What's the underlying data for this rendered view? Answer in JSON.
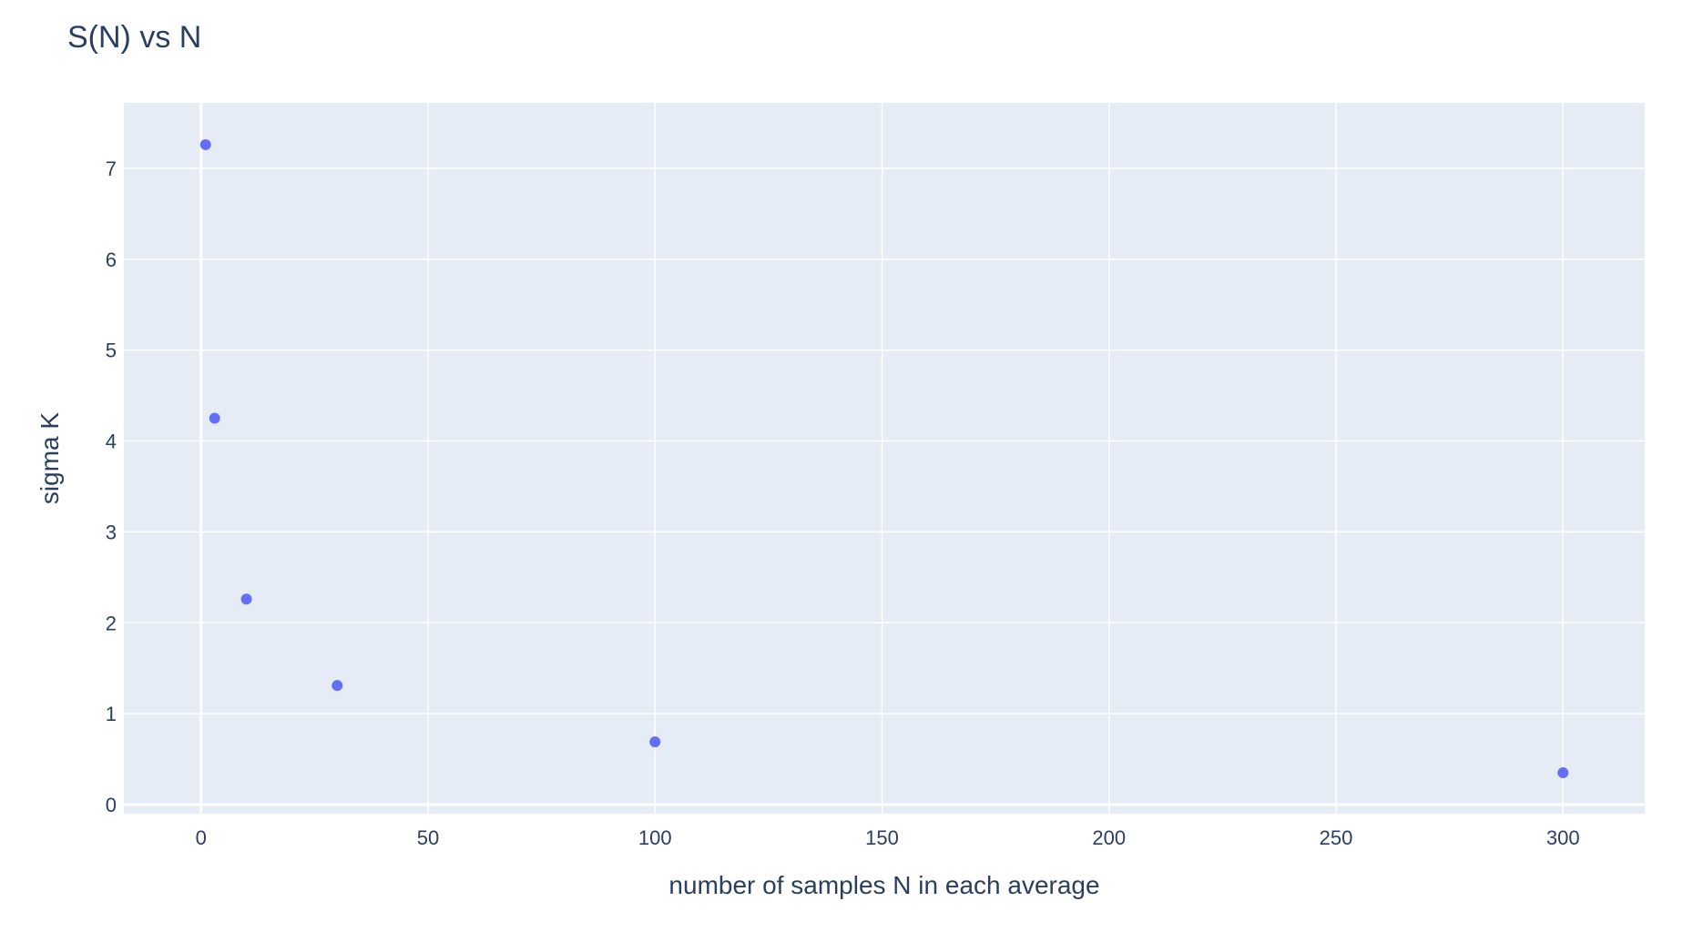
{
  "chart_data": {
    "type": "scatter",
    "title": "S(N) vs N",
    "xlabel": "number of samples N in each average",
    "ylabel": "sigma K",
    "xlim": [
      -17,
      318
    ],
    "ylim": [
      -0.1,
      7.72
    ],
    "xticks": [
      0,
      50,
      100,
      150,
      200,
      250,
      300
    ],
    "yticks": [
      0,
      1,
      2,
      3,
      4,
      5,
      6,
      7
    ],
    "grid": true,
    "legend": "none",
    "series": [
      {
        "x": [
          1,
          3,
          10,
          30,
          100,
          300
        ],
        "y": [
          7.26,
          4.25,
          2.26,
          1.31,
          0.69,
          0.35
        ]
      }
    ],
    "colors": {
      "plot_bg": "#e5ecf6",
      "grid": "#ffffff",
      "marker": "#636efa",
      "text": "#2a3f5f"
    }
  }
}
